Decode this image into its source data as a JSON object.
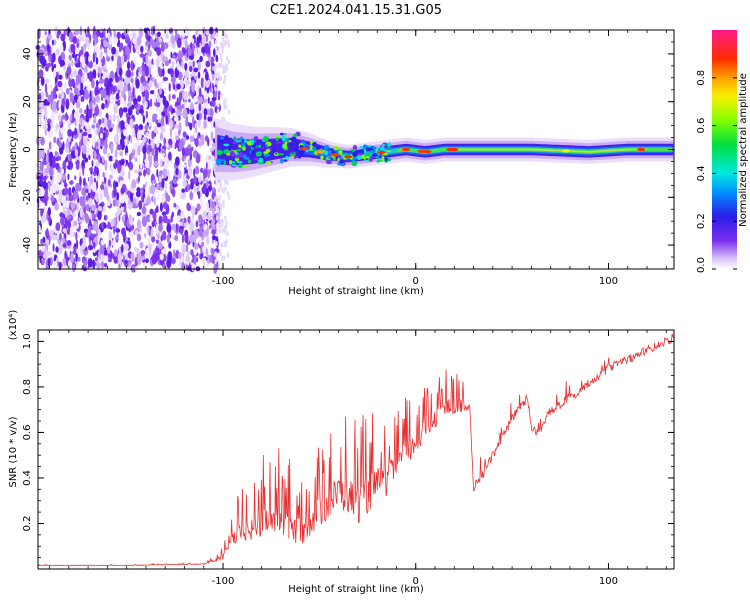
{
  "chart_data": [
    {
      "type": "heatmap",
      "title": "C2E1.2024.041.15.31.G05",
      "xlabel": "Height of straight line (km)",
      "ylabel": "Frequency (Hz)",
      "xlim": [
        -196,
        134
      ],
      "ylim": [
        -50,
        50
      ],
      "xticks": [
        "-100",
        "0",
        "100"
      ],
      "xtick_values": [
        -100,
        0,
        100
      ],
      "yticks": [
        "-40",
        "-20",
        "0",
        "20",
        "40"
      ],
      "ytick_values": [
        -40,
        -20,
        0,
        20,
        40
      ],
      "noise_region_x": [
        -196,
        -102
      ],
      "signal_centerline": [
        [
          -103,
          0
        ],
        [
          -95,
          -1
        ],
        [
          -85,
          -1
        ],
        [
          -75,
          0
        ],
        [
          -65,
          1
        ],
        [
          -55,
          0
        ],
        [
          -45,
          -2
        ],
        [
          -35,
          -3
        ],
        [
          -25,
          -2
        ],
        [
          -15,
          -1
        ],
        [
          -5,
          0
        ],
        [
          5,
          -1
        ],
        [
          15,
          0
        ],
        [
          30,
          0
        ],
        [
          60,
          0
        ],
        [
          90,
          -1
        ],
        [
          110,
          0
        ],
        [
          134,
          0
        ]
      ],
      "colorbar": {
        "label": "Normalized spectral amplitude",
        "ticks": [
          "0.0",
          "0.2",
          "0.4",
          "0.6",
          "0.8"
        ],
        "tick_values": [
          0.0,
          0.2,
          0.4,
          0.6,
          0.8
        ],
        "range": [
          0,
          1
        ]
      }
    },
    {
      "type": "line",
      "xlabel": "Height of straight line (km)",
      "ylabel": "SNR (10 * v/v)",
      "scale_note": "(x10⁴)",
      "xlim": [
        -196,
        134
      ],
      "ylim": [
        0,
        1.05
      ],
      "xticks": [
        "-100",
        "0",
        "100"
      ],
      "xtick_values": [
        -100,
        0,
        100
      ],
      "yticks": [
        "0.2",
        "0.4",
        "0.6",
        "0.8",
        "1.0"
      ],
      "ytick_values": [
        0.2,
        0.4,
        0.6,
        0.8,
        1.0
      ],
      "series": [
        {
          "name": "SNR",
          "color": "#e83030",
          "x": [
            -196,
            -150,
            -110,
            -100,
            -95,
            -90,
            -85,
            -80,
            -75,
            -70,
            -65,
            -60,
            -55,
            -50,
            -45,
            -40,
            -35,
            -30,
            -25,
            -20,
            -15,
            -10,
            -5,
            0,
            5,
            10,
            15,
            20,
            25,
            28,
            30,
            35,
            40,
            45,
            50,
            55,
            58,
            60,
            62,
            65,
            70,
            75,
            80,
            85,
            90,
            95,
            100,
            105,
            110,
            115,
            120,
            125,
            130,
            134
          ],
          "base": [
            0.015,
            0.015,
            0.02,
            0.04,
            0.1,
            0.12,
            0.12,
            0.14,
            0.16,
            0.14,
            0.12,
            0.1,
            0.14,
            0.18,
            0.22,
            0.26,
            0.24,
            0.2,
            0.24,
            0.3,
            0.32,
            0.4,
            0.45,
            0.5,
            0.56,
            0.62,
            0.68,
            0.66,
            0.7,
            0.72,
            0.36,
            0.42,
            0.5,
            0.58,
            0.66,
            0.72,
            0.75,
            0.62,
            0.6,
            0.62,
            0.7,
            0.72,
            0.76,
            0.78,
            0.82,
            0.85,
            0.88,
            0.9,
            0.92,
            0.94,
            0.96,
            0.98,
            1.0,
            1.02
          ],
          "peak": [
            0.02,
            0.02,
            0.03,
            0.1,
            0.28,
            0.36,
            0.4,
            0.5,
            0.52,
            0.54,
            0.48,
            0.44,
            0.52,
            0.56,
            0.64,
            0.7,
            0.72,
            0.66,
            0.7,
            0.72,
            0.68,
            0.74,
            0.76,
            0.78,
            0.82,
            0.86,
            0.9,
            0.86,
            0.86,
            0.84,
            0.48,
            0.52,
            0.56,
            0.64,
            0.74,
            0.82,
            0.86,
            0.68,
            0.64,
            0.68,
            0.76,
            0.8,
            0.84,
            0.86,
            0.88,
            0.9,
            0.93,
            0.95,
            0.97,
            0.99,
            1.0,
            1.02,
            1.04,
            1.05
          ]
        }
      ]
    }
  ]
}
